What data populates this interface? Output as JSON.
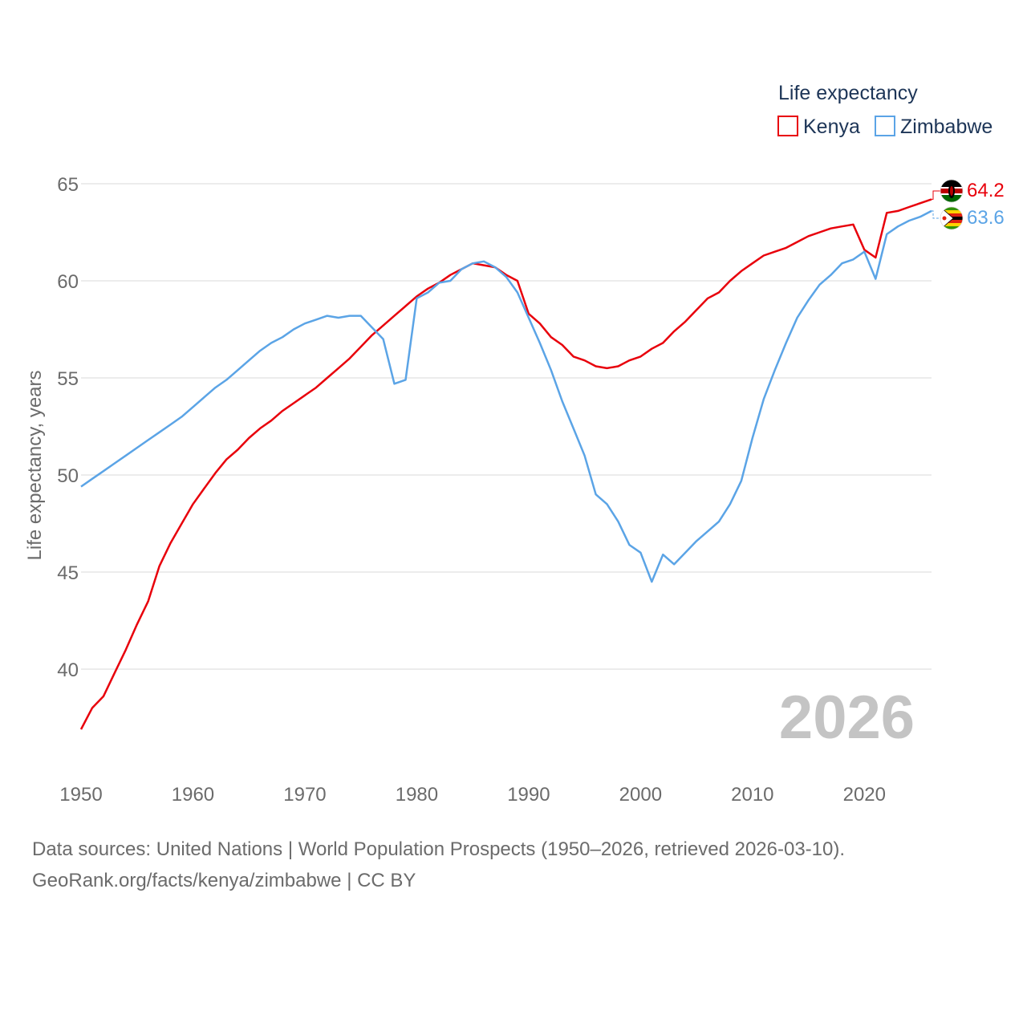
{
  "chart_data": {
    "type": "line",
    "title": "",
    "legend_title": "Life expectancy",
    "ylabel": "Life expectancy, years",
    "xlabel": "",
    "xlim": [
      1950,
      2026
    ],
    "ylim": [
      36,
      66
    ],
    "x_ticks": [
      1950,
      1960,
      1970,
      1980,
      1990,
      2000,
      2010,
      2020
    ],
    "y_ticks": [
      40,
      45,
      50,
      55,
      60,
      65
    ],
    "grid": true,
    "legend_position": "top-right",
    "year_label": "2026",
    "x": [
      1950,
      1951,
      1952,
      1953,
      1954,
      1955,
      1956,
      1957,
      1958,
      1959,
      1960,
      1961,
      1962,
      1963,
      1964,
      1965,
      1966,
      1967,
      1968,
      1969,
      1970,
      1971,
      1972,
      1973,
      1974,
      1975,
      1976,
      1977,
      1978,
      1979,
      1980,
      1981,
      1982,
      1983,
      1984,
      1985,
      1986,
      1987,
      1988,
      1989,
      1990,
      1991,
      1992,
      1993,
      1994,
      1995,
      1996,
      1997,
      1998,
      1999,
      2000,
      2001,
      2002,
      2003,
      2004,
      2005,
      2006,
      2007,
      2008,
      2009,
      2010,
      2011,
      2012,
      2013,
      2014,
      2015,
      2016,
      2017,
      2018,
      2019,
      2020,
      2021,
      2022,
      2023,
      2024,
      2025,
      2026
    ],
    "series": [
      {
        "name": "Kenya",
        "color": "#e8000b",
        "end_label": "64.2",
        "values": [
          36.9,
          38.0,
          38.6,
          39.8,
          41.0,
          42.3,
          43.5,
          45.3,
          46.5,
          47.5,
          48.5,
          49.3,
          50.1,
          50.8,
          51.3,
          51.9,
          52.4,
          52.8,
          53.3,
          53.7,
          54.1,
          54.5,
          55.0,
          55.5,
          56.0,
          56.6,
          57.2,
          57.7,
          58.2,
          58.7,
          59.2,
          59.6,
          59.9,
          60.3,
          60.6,
          60.9,
          60.8,
          60.7,
          60.3,
          60.0,
          58.3,
          57.8,
          57.1,
          56.7,
          56.1,
          55.9,
          55.6,
          55.5,
          55.6,
          55.9,
          56.1,
          56.5,
          56.8,
          57.4,
          57.9,
          58.5,
          59.1,
          59.4,
          60.0,
          60.5,
          60.9,
          61.3,
          61.5,
          61.7,
          62.0,
          62.3,
          62.5,
          62.7,
          62.8,
          62.9,
          61.6,
          61.2,
          63.5,
          63.6,
          63.8,
          64.0,
          64.2
        ]
      },
      {
        "name": "Zimbabwe",
        "color": "#5ba4e6",
        "end_label": "63.6",
        "values": [
          49.4,
          49.8,
          50.2,
          50.6,
          51.0,
          51.4,
          51.8,
          52.2,
          52.6,
          53.0,
          53.5,
          54.0,
          54.5,
          54.9,
          55.4,
          55.9,
          56.4,
          56.8,
          57.1,
          57.5,
          57.8,
          58.0,
          58.2,
          58.1,
          58.2,
          58.2,
          57.6,
          57.0,
          54.7,
          54.9,
          59.1,
          59.4,
          59.9,
          60.0,
          60.6,
          60.9,
          61.0,
          60.7,
          60.2,
          59.4,
          58.1,
          56.8,
          55.4,
          53.8,
          52.4,
          51.0,
          49.0,
          48.5,
          47.6,
          46.4,
          46.0,
          44.5,
          45.9,
          45.4,
          46.0,
          46.6,
          47.1,
          47.6,
          48.5,
          49.7,
          51.9,
          53.9,
          55.4,
          56.8,
          58.1,
          59.0,
          59.8,
          60.3,
          60.9,
          61.1,
          61.5,
          60.1,
          62.4,
          62.8,
          63.1,
          63.3,
          63.6
        ]
      }
    ]
  },
  "source": {
    "line1": "Data sources: United Nations | World Population Prospects (1950–2026, retrieved 2026-03-10).",
    "line2": "GeoRank.org/facts/kenya/zimbabwe | CC BY"
  },
  "flags": {
    "kenya": "kenya-flag-icon",
    "zimbabwe": "zimbabwe-flag-icon"
  }
}
